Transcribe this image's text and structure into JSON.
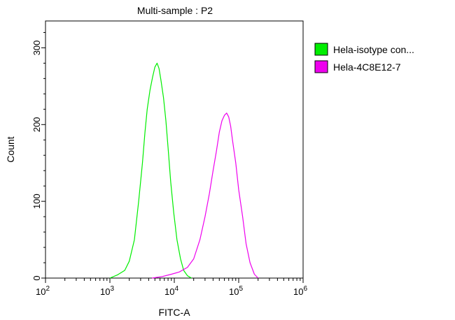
{
  "chart_data": {
    "type": "line",
    "title": "Multi-sample : P2",
    "xlabel": "FITC-A",
    "ylabel": "Count",
    "x_scale": "log",
    "xlim": [
      100,
      1000000
    ],
    "ylim": [
      0,
      335
    ],
    "x_ticks": [
      {
        "value": 100,
        "base": "10",
        "exp": "2"
      },
      {
        "value": 1000,
        "base": "10",
        "exp": "3"
      },
      {
        "value": 10000,
        "base": "10",
        "exp": "4"
      },
      {
        "value": 100000,
        "base": "10",
        "exp": "5"
      },
      {
        "value": 1000000,
        "base": "10",
        "exp": "6"
      }
    ],
    "y_ticks": [
      0,
      100,
      200,
      300
    ],
    "grid": false,
    "legend_position": "right",
    "series": [
      {
        "name": "Hela-isotype con...",
        "color": "#00ee00",
        "x": [
          1000,
          1300,
          1700,
          2000,
          2400,
          2800,
          3200,
          3500,
          3800,
          4200,
          4600,
          5000,
          5400,
          5800,
          6200,
          6800,
          7400,
          8000,
          8800,
          9800,
          11000,
          12500,
          14000,
          16000,
          18500
        ],
        "y": [
          0,
          4,
          10,
          22,
          50,
          100,
          150,
          190,
          220,
          245,
          262,
          275,
          280,
          273,
          258,
          235,
          205,
          170,
          125,
          85,
          50,
          25,
          10,
          3,
          0
        ]
      },
      {
        "name": "Hela-4C8E12-7",
        "color": "#ee00ee",
        "x": [
          4500,
          6500,
          9000,
          12000,
          16000,
          20000,
          25000,
          30000,
          35000,
          40000,
          45000,
          50000,
          55000,
          60000,
          65000,
          70000,
          75000,
          80000,
          90000,
          100000,
          115000,
          130000,
          150000,
          175000,
          200000
        ],
        "y": [
          0,
          2,
          5,
          8,
          14,
          25,
          50,
          80,
          110,
          140,
          165,
          190,
          205,
          212,
          215,
          210,
          198,
          180,
          150,
          115,
          80,
          45,
          20,
          5,
          0
        ]
      }
    ]
  }
}
